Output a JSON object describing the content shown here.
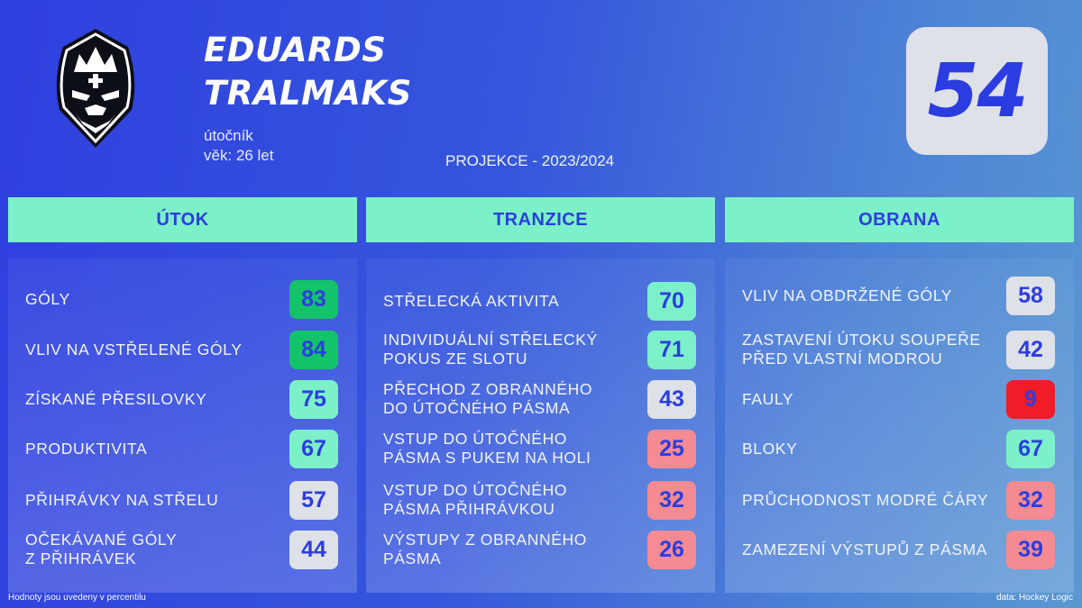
{
  "player": {
    "first_name": "EDUARDS",
    "last_name": "TRALMAKS",
    "position": "útočník",
    "age": "věk: 26 let",
    "rating": "54",
    "logo_icon": "crowned-knight-head-icon"
  },
  "season": "PROJEKCE - 2023/2024",
  "colors": {
    "background_start": "#2f3fe0",
    "background_end": "#5a98d2",
    "header": "#7cf0c8",
    "accent_text": "#2b3de0",
    "value_dark_green": "#13c36a",
    "value_green": "#7cf0c8",
    "value_grey": "#dfe1e8",
    "value_pink": "#f48a92",
    "value_red": "#f01c28"
  },
  "panels": [
    {
      "title": "ÚTOK",
      "metrics": [
        {
          "label": "GÓLY",
          "value": "83",
          "color": "dark-green"
        },
        {
          "label": "VLIV NA VSTŘELENÉ GÓLY",
          "value": "84",
          "color": "dark-green"
        },
        {
          "label": "ZÍSKANÉ PŘESILOVKY",
          "value": "75",
          "color": "green"
        },
        {
          "label": "PRODUKTIVITA",
          "value": "67",
          "color": "green"
        },
        {
          "label": "PŘIHRÁVKY NA STŘELU",
          "value": "57",
          "color": "grey"
        },
        {
          "label": "OČEKÁVANÉ GÓLY\nZ PŘIHRÁVEK",
          "value": "44",
          "color": "grey"
        }
      ]
    },
    {
      "title": "TRANZICE",
      "metrics": [
        {
          "label": "STŘELECKÁ AKTIVITA",
          "value": "70",
          "color": "green"
        },
        {
          "label": "INDIVIDUÁLNÍ STŘELECKÝ\nPOKUS ZE SLOTU",
          "value": "71",
          "color": "green"
        },
        {
          "label": "PŘECHOD Z OBRANNÉHO\nDO ÚTOČNÉHO PÁSMA",
          "value": "43",
          "color": "grey"
        },
        {
          "label": "VSTUP DO ÚTOČNÉHO\nPÁSMA S PUKEM NA HOLI",
          "value": "25",
          "color": "pink"
        },
        {
          "label": "VSTUP DO ÚTOČNÉHO\nPÁSMA PŘIHRÁVKOU",
          "value": "32",
          "color": "pink"
        },
        {
          "label": "VÝSTUPY Z OBRANNÉHO\nPÁSMA",
          "value": "26",
          "color": "pink"
        }
      ]
    },
    {
      "title": "OBRANA",
      "metrics": [
        {
          "label": "VLIV NA OBDRŽENÉ GÓLY",
          "value": "58",
          "color": "grey"
        },
        {
          "label": "ZASTAVENÍ ÚTOKU SOUPEŘE\nPŘED VLASTNÍ MODROU",
          "value": "42",
          "color": "grey"
        },
        {
          "label": "FAULY",
          "value": "9",
          "color": "red"
        },
        {
          "label": "BLOKY",
          "value": "67",
          "color": "green"
        },
        {
          "label": "PRŮCHODNOST MODRÉ ČÁRY",
          "value": "32",
          "color": "pink"
        },
        {
          "label": "ZAMEZENÍ VÝSTUPŮ Z PÁSMA",
          "value": "39",
          "color": "pink"
        }
      ]
    }
  ],
  "footer": {
    "note": "Hodnoty jsou uvedeny v percentilu",
    "source": "data: Hockey Logic"
  }
}
